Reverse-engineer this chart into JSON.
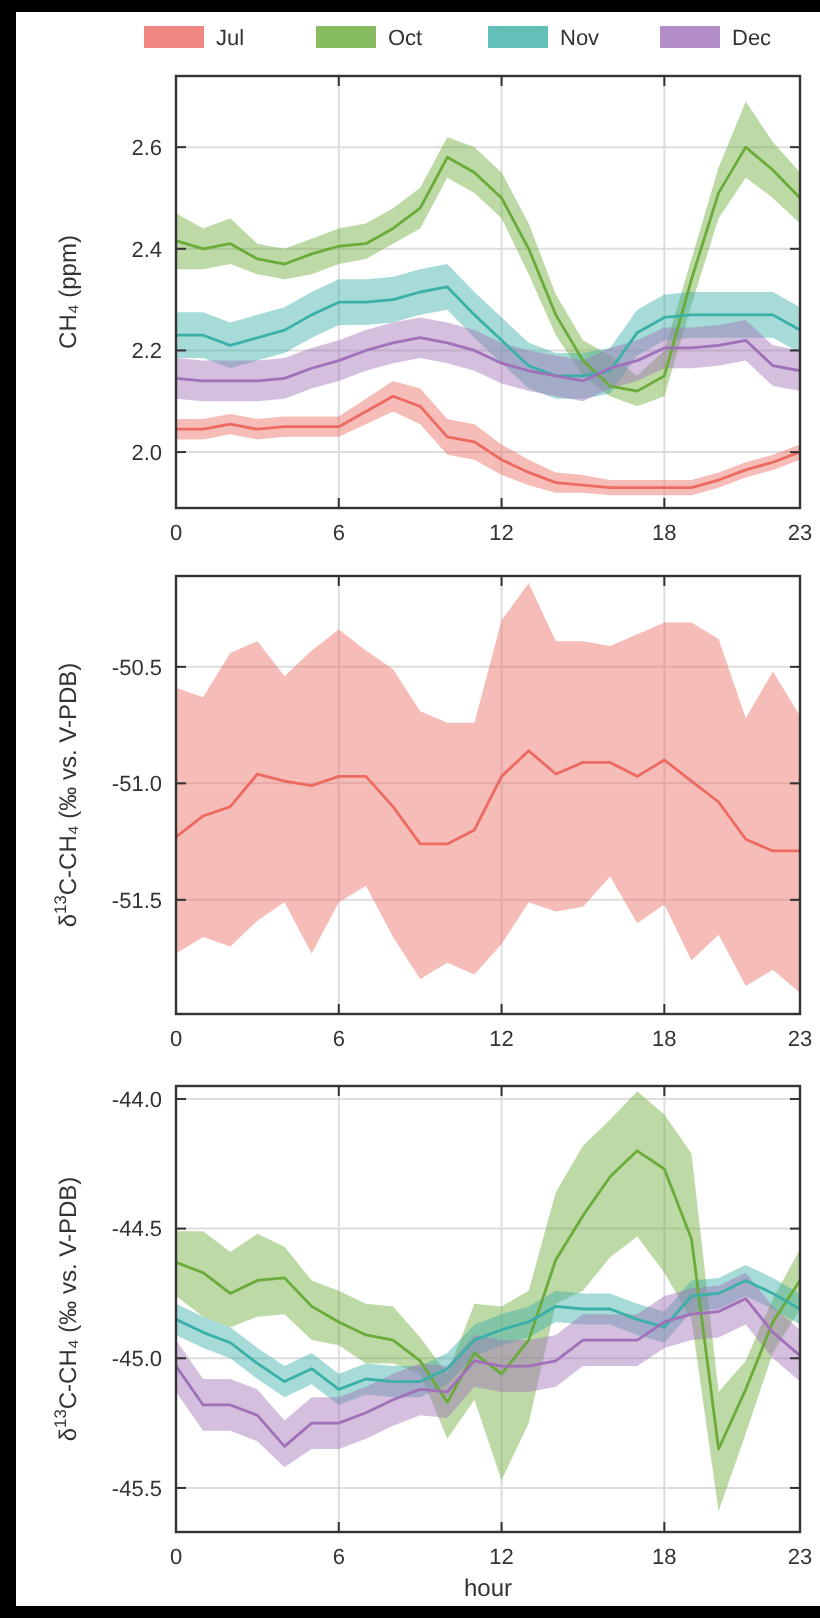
{
  "chart_data": [
    {
      "type": "line",
      "ylabel": "CH₄ (ppm)",
      "x": [
        0,
        1,
        2,
        3,
        4,
        5,
        6,
        7,
        8,
        9,
        10,
        11,
        12,
        13,
        14,
        15,
        16,
        17,
        18,
        19,
        20,
        21,
        22,
        23
      ],
      "xlim": [
        0,
        23
      ],
      "xticks": [
        0,
        6,
        12,
        18,
        23
      ],
      "ylim": [
        1.89,
        2.74
      ],
      "yticks": [
        {
          "value": 2,
          "label": "2.0"
        },
        {
          "value": 2.2,
          "label": "2.2"
        },
        {
          "value": 2.4,
          "label": "2.4"
        },
        {
          "value": 2.6,
          "label": "2.6"
        }
      ],
      "grid": true,
      "legend": "top",
      "series": [
        {
          "name": "Jul",
          "color": "#ec6a62",
          "values": [
            2.045,
            2.045,
            2.055,
            2.045,
            2.05,
            2.05,
            2.05,
            2.08,
            2.11,
            2.09,
            2.03,
            2.02,
            1.985,
            1.96,
            1.94,
            1.935,
            1.93,
            1.93,
            1.93,
            1.93,
            1.945,
            1.965,
            1.98,
            2.0
          ],
          "lower": [
            2.025,
            2.025,
            2.035,
            2.025,
            2.03,
            2.03,
            2.03,
            2.055,
            2.08,
            2.055,
            1.995,
            1.985,
            1.955,
            1.935,
            1.92,
            1.92,
            1.915,
            1.915,
            1.915,
            1.915,
            1.93,
            1.95,
            1.965,
            1.985
          ],
          "upper": [
            2.065,
            2.065,
            2.075,
            2.065,
            2.07,
            2.07,
            2.07,
            2.105,
            2.14,
            2.125,
            2.065,
            2.055,
            2.015,
            1.985,
            1.96,
            1.955,
            1.945,
            1.945,
            1.945,
            1.945,
            1.96,
            1.98,
            1.995,
            2.015
          ]
        },
        {
          "name": "Oct",
          "color": "#6aab3a",
          "values": [
            2.416,
            2.4,
            2.41,
            2.38,
            2.37,
            2.39,
            2.405,
            2.41,
            2.44,
            2.48,
            2.58,
            2.55,
            2.5,
            2.4,
            2.27,
            2.18,
            2.13,
            2.12,
            2.15,
            2.34,
            2.51,
            2.6,
            2.555,
            2.5
          ],
          "lower": [
            2.36,
            2.36,
            2.37,
            2.35,
            2.34,
            2.35,
            2.37,
            2.38,
            2.41,
            2.44,
            2.54,
            2.51,
            2.46,
            2.35,
            2.23,
            2.15,
            2.11,
            2.09,
            2.11,
            2.29,
            2.46,
            2.54,
            2.5,
            2.45
          ],
          "upper": [
            2.47,
            2.44,
            2.46,
            2.41,
            2.4,
            2.42,
            2.44,
            2.45,
            2.48,
            2.52,
            2.62,
            2.6,
            2.55,
            2.45,
            2.31,
            2.22,
            2.19,
            2.15,
            2.2,
            2.38,
            2.56,
            2.69,
            2.61,
            2.55
          ]
        },
        {
          "name": "Nov",
          "color": "#3bb0a8",
          "values": [
            2.23,
            2.23,
            2.21,
            2.225,
            2.24,
            2.27,
            2.295,
            2.295,
            2.3,
            2.315,
            2.325,
            2.27,
            2.22,
            2.17,
            2.15,
            2.15,
            2.16,
            2.235,
            2.265,
            2.27,
            2.27,
            2.27,
            2.27,
            2.24
          ],
          "lower": [
            2.185,
            2.185,
            2.165,
            2.18,
            2.195,
            2.225,
            2.25,
            2.25,
            2.255,
            2.27,
            2.28,
            2.225,
            2.175,
            2.125,
            2.105,
            2.105,
            2.115,
            2.19,
            2.22,
            2.225,
            2.225,
            2.225,
            2.225,
            2.195
          ],
          "upper": [
            2.275,
            2.275,
            2.255,
            2.27,
            2.285,
            2.315,
            2.34,
            2.34,
            2.345,
            2.36,
            2.37,
            2.315,
            2.265,
            2.215,
            2.195,
            2.195,
            2.205,
            2.28,
            2.31,
            2.315,
            2.315,
            2.315,
            2.315,
            2.285
          ]
        },
        {
          "name": "Dec",
          "color": "#a070b8",
          "values": [
            2.145,
            2.14,
            2.14,
            2.14,
            2.145,
            2.165,
            2.18,
            2.2,
            2.215,
            2.225,
            2.215,
            2.2,
            2.175,
            2.16,
            2.15,
            2.14,
            2.165,
            2.18,
            2.205,
            2.205,
            2.21,
            2.22,
            2.17,
            2.16
          ],
          "lower": [
            2.105,
            2.1,
            2.1,
            2.1,
            2.105,
            2.125,
            2.14,
            2.16,
            2.175,
            2.185,
            2.175,
            2.16,
            2.135,
            2.12,
            2.11,
            2.1,
            2.125,
            2.14,
            2.165,
            2.165,
            2.17,
            2.18,
            2.13,
            2.12
          ],
          "upper": [
            2.185,
            2.18,
            2.18,
            2.18,
            2.185,
            2.205,
            2.22,
            2.24,
            2.255,
            2.265,
            2.255,
            2.24,
            2.215,
            2.2,
            2.19,
            2.18,
            2.205,
            2.22,
            2.245,
            2.245,
            2.25,
            2.26,
            2.21,
            2.2
          ]
        }
      ]
    },
    {
      "type": "line",
      "ylabel": "δ$^{13}$C-CH₄ (‰ vs. V-PDB)",
      "x": [
        0,
        1,
        2,
        3,
        4,
        5,
        6,
        7,
        8,
        9,
        10,
        11,
        12,
        13,
        14,
        15,
        16,
        17,
        18,
        19,
        20,
        21,
        22,
        23
      ],
      "xlim": [
        0,
        23
      ],
      "xticks": [
        0,
        6,
        12,
        18,
        23
      ],
      "ylim": [
        -51.99,
        -50.11
      ],
      "yticks": [
        -51.5,
        {
          "value": -51,
          "label": "-51.0"
        },
        -50.5
      ],
      "grid": true,
      "series": [
        {
          "color": "#ec6a62",
          "values": [
            -51.23,
            -51.14,
            -51.1,
            -50.96,
            -50.99,
            -51.01,
            -50.97,
            -50.97,
            -51.1,
            -51.26,
            -51.26,
            -51.2,
            -50.97,
            -50.86,
            -50.96,
            -50.91,
            -50.91,
            -50.97,
            -50.9,
            -50.99,
            -51.08,
            -51.24,
            -51.29,
            -51.29
          ],
          "lower": [
            -51.73,
            -51.66,
            -51.7,
            -51.59,
            -51.51,
            -51.73,
            -51.51,
            -51.44,
            -51.66,
            -51.84,
            -51.77,
            -51.82,
            -51.69,
            -51.51,
            -51.55,
            -51.53,
            -51.4,
            -51.6,
            -51.52,
            -51.76,
            -51.65,
            -51.87,
            -51.8,
            -51.9
          ],
          "upper": [
            -50.59,
            -50.63,
            -50.44,
            -50.39,
            -50.54,
            -50.43,
            -50.34,
            -50.43,
            -50.51,
            -50.69,
            -50.74,
            -50.74,
            -50.3,
            -50.14,
            -50.39,
            -50.39,
            -50.41,
            -50.36,
            -50.31,
            -50.31,
            -50.38,
            -50.72,
            -50.52,
            -50.71
          ]
        }
      ]
    },
    {
      "type": "line",
      "xlabel": "hour",
      "ylabel": "δ$^{13}$C-CH₄ (‰ vs. V-PDB)",
      "x": [
        0,
        1,
        2,
        3,
        4,
        5,
        6,
        7,
        8,
        9,
        10,
        11,
        12,
        13,
        14,
        15,
        16,
        17,
        18,
        19,
        20,
        21,
        22,
        23
      ],
      "xlim": [
        0,
        23
      ],
      "xticks": [
        0,
        6,
        12,
        18,
        23
      ],
      "ylim": [
        -45.67,
        -43.95
      ],
      "yticks": [
        -45.5,
        {
          "value": -45,
          "label": "-45.0"
        },
        -44.5,
        {
          "value": -44,
          "label": "-44.0"
        }
      ],
      "grid": true,
      "series": [
        {
          "color": "#6aab3a",
          "values": [
            -44.63,
            -44.67,
            -44.75,
            -44.7,
            -44.69,
            -44.8,
            -44.86,
            -44.91,
            -44.93,
            -45.01,
            -45.17,
            -44.98,
            -45.06,
            -44.93,
            -44.62,
            -44.45,
            -44.3,
            -44.2,
            -44.27,
            -44.54,
            -45.35,
            -45.12,
            -44.86,
            -44.7
          ],
          "lower": [
            -44.76,
            -44.84,
            -44.88,
            -44.84,
            -44.83,
            -44.93,
            -44.95,
            -45.02,
            -45.02,
            -45.06,
            -45.31,
            -45.16,
            -45.47,
            -45.25,
            -44.79,
            -44.74,
            -44.61,
            -44.53,
            -44.67,
            -44.85,
            -45.59,
            -45.29,
            -44.98,
            -44.81
          ],
          "upper": [
            -44.51,
            -44.51,
            -44.59,
            -44.52,
            -44.57,
            -44.7,
            -44.74,
            -44.79,
            -44.8,
            -44.92,
            -45.06,
            -44.79,
            -44.8,
            -44.74,
            -44.36,
            -44.18,
            -44.08,
            -43.97,
            -44.06,
            -44.21,
            -45.13,
            -45.01,
            -44.77,
            -44.58
          ]
        },
        {
          "color": "#3bb0a8",
          "values": [
            -44.85,
            -44.9,
            -44.94,
            -45.02,
            -45.09,
            -45.04,
            -45.12,
            -45.08,
            -45.09,
            -45.09,
            -45.04,
            -44.93,
            -44.89,
            -44.86,
            -44.8,
            -44.81,
            -44.81,
            -44.85,
            -44.88,
            -44.76,
            -44.75,
            -44.7,
            -44.75,
            -44.81
          ],
          "lower": [
            -44.91,
            -44.96,
            -45.0,
            -45.08,
            -45.15,
            -45.1,
            -45.18,
            -45.14,
            -45.15,
            -45.15,
            -45.1,
            -44.99,
            -44.95,
            -44.92,
            -44.86,
            -44.87,
            -44.87,
            -44.91,
            -44.94,
            -44.82,
            -44.81,
            -44.76,
            -44.81,
            -44.87
          ],
          "upper": [
            -44.79,
            -44.84,
            -44.88,
            -44.96,
            -45.03,
            -44.98,
            -45.06,
            -45.02,
            -45.03,
            -45.03,
            -44.98,
            -44.87,
            -44.83,
            -44.8,
            -44.74,
            -44.75,
            -44.75,
            -44.79,
            -44.82,
            -44.7,
            -44.69,
            -44.64,
            -44.69,
            -44.75
          ]
        },
        {
          "color": "#a070b8",
          "values": [
            -45.03,
            -45.18,
            -45.18,
            -45.22,
            -45.34,
            -45.25,
            -45.25,
            -45.21,
            -45.16,
            -45.12,
            -45.13,
            -45.01,
            -45.03,
            -45.03,
            -45.01,
            -44.93,
            -44.93,
            -44.93,
            -44.86,
            -44.83,
            -44.82,
            -44.77,
            -44.9,
            -44.99
          ],
          "lower": [
            -45.13,
            -45.28,
            -45.28,
            -45.32,
            -45.42,
            -45.35,
            -45.35,
            -45.31,
            -45.26,
            -45.22,
            -45.23,
            -45.11,
            -45.13,
            -45.13,
            -45.11,
            -45.03,
            -45.03,
            -45.03,
            -44.96,
            -44.93,
            -44.92,
            -44.87,
            -45.0,
            -45.09
          ],
          "upper": [
            -44.93,
            -45.08,
            -45.08,
            -45.12,
            -45.24,
            -45.15,
            -45.15,
            -45.11,
            -45.06,
            -45.02,
            -45.03,
            -44.91,
            -44.93,
            -44.93,
            -44.91,
            -44.83,
            -44.83,
            -44.83,
            -44.76,
            -44.73,
            -44.72,
            -44.67,
            -44.8,
            -44.89
          ]
        }
      ]
    }
  ]
}
